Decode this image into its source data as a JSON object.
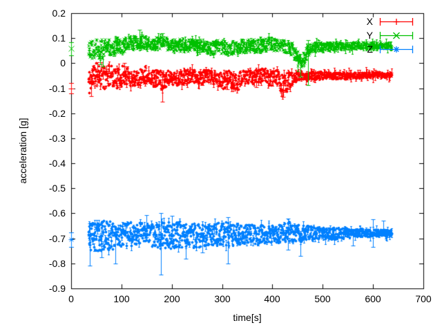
{
  "figure": {
    "background": "#ffffff",
    "axis_color": "#000000",
    "text_color": "#000000"
  },
  "chart_data": {
    "type": "scatter",
    "style": "errorbars",
    "title": "",
    "xlabel": "time[s]",
    "ylabel": "acceleration [g]",
    "xlim": [
      0,
      700
    ],
    "ylim": [
      -0.9,
      0.2
    ],
    "xticks": [
      0,
      100,
      200,
      300,
      400,
      500,
      600,
      700
    ],
    "xtick_labels": [
      "0",
      "100",
      "200",
      "300",
      "400",
      "500",
      "600",
      "700"
    ],
    "yticks": [
      0.2,
      0.1,
      0,
      -0.1,
      -0.2,
      -0.3,
      -0.4,
      -0.5,
      -0.6,
      -0.7,
      -0.8,
      -0.9
    ],
    "ytick_labels": [
      "0.2",
      "0.1",
      "0",
      "-0.1",
      "-0.2",
      "-0.3",
      "-0.4",
      "-0.5",
      "-0.6",
      "-0.7",
      "-0.8",
      "-0.9"
    ],
    "grid": false,
    "legend_position": "top-right-inside",
    "time_range_s": [
      34,
      637
    ],
    "series": [
      {
        "name": "X",
        "color": "#ff0000",
        "marker": "plus",
        "seed": 11,
        "start_point": {
          "t": 0,
          "value": -0.1,
          "err": 0.021
        },
        "band_keyframes": [
          [
            34,
            -0.075,
            0.055
          ],
          [
            45,
            -0.05,
            0.05
          ],
          [
            55,
            -0.04,
            0.045
          ],
          [
            65,
            -0.06,
            0.05
          ],
          [
            78,
            -0.045,
            0.04
          ],
          [
            92,
            -0.06,
            0.04
          ],
          [
            105,
            -0.045,
            0.04
          ],
          [
            120,
            -0.06,
            0.035
          ],
          [
            135,
            -0.055,
            0.035
          ],
          [
            150,
            -0.042,
            0.035
          ],
          [
            165,
            -0.06,
            0.032
          ],
          [
            180,
            -0.065,
            0.04
          ],
          [
            195,
            -0.055,
            0.028
          ],
          [
            215,
            -0.06,
            0.03
          ],
          [
            235,
            -0.05,
            0.03
          ],
          [
            255,
            -0.058,
            0.028
          ],
          [
            270,
            -0.05,
            0.026
          ],
          [
            285,
            -0.06,
            0.03
          ],
          [
            300,
            -0.075,
            0.035
          ],
          [
            312,
            -0.052,
            0.03
          ],
          [
            325,
            -0.08,
            0.035
          ],
          [
            340,
            -0.058,
            0.03
          ],
          [
            360,
            -0.055,
            0.026
          ],
          [
            380,
            -0.045,
            0.03
          ],
          [
            395,
            -0.06,
            0.03
          ],
          [
            408,
            -0.052,
            0.03
          ],
          [
            420,
            -0.09,
            0.045
          ],
          [
            432,
            -0.07,
            0.035
          ],
          [
            445,
            -0.052,
            0.022
          ],
          [
            465,
            -0.05,
            0.017
          ],
          [
            500,
            -0.048,
            0.014
          ],
          [
            550,
            -0.05,
            0.013
          ],
          [
            600,
            -0.045,
            0.012
          ],
          [
            637,
            -0.047,
            0.012
          ]
        ],
        "outlier_errorbars": [
          [
            40,
            -0.132,
            null
          ],
          [
            52,
            null,
            0.003
          ],
          [
            105,
            null,
            0.0
          ],
          [
            181,
            -0.155,
            null
          ],
          [
            310,
            -0.105,
            null
          ],
          [
            368,
            -0.095,
            null
          ],
          [
            421,
            -0.135,
            null
          ]
        ]
      },
      {
        "name": "Y",
        "color": "#00c000",
        "marker": "cross",
        "seed": 22,
        "start_point": {
          "t": 0,
          "value": 0.058,
          "err": 0.026
        },
        "band_keyframes": [
          [
            34,
            0.06,
            0.045
          ],
          [
            48,
            0.065,
            0.04
          ],
          [
            62,
            0.055,
            0.038
          ],
          [
            75,
            0.065,
            0.035
          ],
          [
            90,
            0.07,
            0.032
          ],
          [
            110,
            0.075,
            0.03
          ],
          [
            130,
            0.085,
            0.026
          ],
          [
            150,
            0.085,
            0.026
          ],
          [
            165,
            0.075,
            0.022
          ],
          [
            180,
            0.088,
            0.028
          ],
          [
            195,
            0.07,
            0.022
          ],
          [
            215,
            0.072,
            0.026
          ],
          [
            235,
            0.075,
            0.026
          ],
          [
            255,
            0.068,
            0.024
          ],
          [
            275,
            0.062,
            0.026
          ],
          [
            295,
            0.065,
            0.028
          ],
          [
            315,
            0.06,
            0.024
          ],
          [
            335,
            0.066,
            0.026
          ],
          [
            355,
            0.07,
            0.026
          ],
          [
            375,
            0.072,
            0.028
          ],
          [
            392,
            0.078,
            0.024
          ],
          [
            410,
            0.072,
            0.022
          ],
          [
            425,
            0.07,
            0.022
          ],
          [
            440,
            0.055,
            0.028
          ],
          [
            450,
            0.02,
            0.032
          ],
          [
            457,
            -0.002,
            0.028
          ],
          [
            465,
            0.028,
            0.032
          ],
          [
            472,
            0.058,
            0.022
          ],
          [
            485,
            0.065,
            0.016
          ],
          [
            520,
            0.068,
            0.014
          ],
          [
            560,
            0.07,
            0.013
          ],
          [
            600,
            0.072,
            0.012
          ],
          [
            637,
            0.07,
            0.012
          ]
        ],
        "outlier_errorbars": [
          [
            58,
            -0.004,
            0.02
          ],
          [
            63,
            -0.012,
            0.03
          ],
          [
            136,
            0.06,
            0.135
          ],
          [
            181,
            0.07,
            0.12
          ],
          [
            455,
            -0.055,
            0.02
          ],
          [
            471,
            -0.087,
            0.092
          ]
        ]
      },
      {
        "name": "Z",
        "color": "#0080ff",
        "marker": "star",
        "seed": 33,
        "start_point": {
          "t": 0,
          "value": -0.705,
          "err": 0.03
        },
        "band_keyframes": [
          [
            34,
            -0.69,
            0.068
          ],
          [
            50,
            -0.69,
            0.065
          ],
          [
            70,
            -0.69,
            0.06
          ],
          [
            90,
            -0.685,
            0.055
          ],
          [
            110,
            -0.685,
            0.05
          ],
          [
            130,
            -0.68,
            0.046
          ],
          [
            150,
            -0.685,
            0.042
          ],
          [
            170,
            -0.69,
            0.05
          ],
          [
            185,
            -0.685,
            0.055
          ],
          [
            200,
            -0.69,
            0.05
          ],
          [
            220,
            -0.685,
            0.055
          ],
          [
            240,
            -0.69,
            0.05
          ],
          [
            260,
            -0.685,
            0.046
          ],
          [
            280,
            -0.685,
            0.04
          ],
          [
            300,
            -0.68,
            0.046
          ],
          [
            315,
            -0.685,
            0.05
          ],
          [
            330,
            -0.685,
            0.042
          ],
          [
            350,
            -0.68,
            0.036
          ],
          [
            370,
            -0.685,
            0.04
          ],
          [
            390,
            -0.68,
            0.036
          ],
          [
            410,
            -0.68,
            0.035
          ],
          [
            430,
            -0.672,
            0.04
          ],
          [
            450,
            -0.68,
            0.035
          ],
          [
            470,
            -0.68,
            0.03
          ],
          [
            500,
            -0.68,
            0.026
          ],
          [
            530,
            -0.68,
            0.022
          ],
          [
            560,
            -0.68,
            0.018
          ],
          [
            590,
            -0.678,
            0.015
          ],
          [
            615,
            -0.678,
            0.013
          ],
          [
            637,
            -0.678,
            0.011
          ]
        ],
        "outlier_errorbars": [
          [
            37,
            -0.81,
            -0.64
          ],
          [
            60,
            -0.775,
            null
          ],
          [
            88,
            -0.8,
            null
          ],
          [
            150,
            null,
            -0.608
          ],
          [
            178,
            -0.845,
            -0.6
          ],
          [
            200,
            null,
            -0.61
          ],
          [
            228,
            -0.78,
            null
          ],
          [
            261,
            -0.755,
            null
          ],
          [
            312,
            -0.8,
            -0.615
          ],
          [
            431,
            -0.745,
            -0.62
          ],
          [
            455,
            -0.77,
            null
          ],
          [
            560,
            -0.73,
            null
          ],
          [
            600,
            -0.735,
            -0.625
          ],
          [
            620,
            null,
            -0.63
          ]
        ]
      }
    ]
  }
}
